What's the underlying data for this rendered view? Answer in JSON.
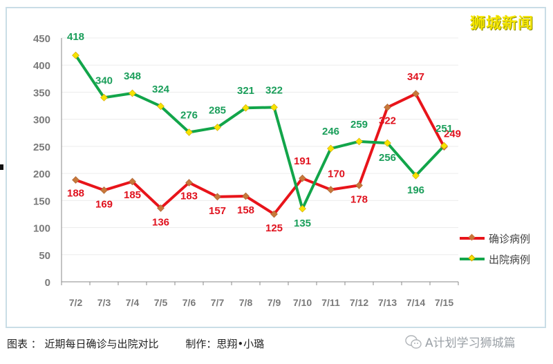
{
  "watermark": "狮城新闻",
  "caption": {
    "figure_label": "图表 ： 近期每日确诊与出院对比",
    "author": "制作：思翔•小璐"
  },
  "wechat_source": "A计划学习狮城篇",
  "legend": {
    "confirmed": "确诊病例",
    "discharged": "出院病例"
  },
  "colors": {
    "confirmed_line": "#e8141a",
    "confirmed_marker": "#c8783a",
    "confirmed_label": "#e0121e",
    "discharged_line": "#12a54a",
    "discharged_marker": "#f5e400",
    "discharged_label": "#1a9e5a",
    "axis_text": "#7a7a7a",
    "grid": "#ececec"
  },
  "chart_data": {
    "type": "line",
    "title": "近期每日确诊与出院对比",
    "xlabel": "",
    "ylabel": "",
    "categories": [
      "7/2",
      "7/3",
      "7/4",
      "7/5",
      "7/6",
      "7/7",
      "7/8",
      "7/9",
      "7/10",
      "7/11",
      "7/12",
      "7/13",
      "7/14",
      "7/15"
    ],
    "series": [
      {
        "name": "确诊病例",
        "values": [
          188,
          169,
          185,
          136,
          183,
          157,
          158,
          125,
          191,
          170,
          178,
          322,
          347,
          249
        ]
      },
      {
        "name": "出院病例",
        "values": [
          418,
          340,
          348,
          324,
          276,
          285,
          321,
          322,
          135,
          246,
          259,
          256,
          196,
          251
        ]
      }
    ],
    "ylim": [
      0,
      450
    ],
    "yticks": [
      0,
      50,
      100,
      150,
      200,
      250,
      300,
      350,
      400,
      450
    ],
    "grid": true,
    "legend_position": "right"
  }
}
